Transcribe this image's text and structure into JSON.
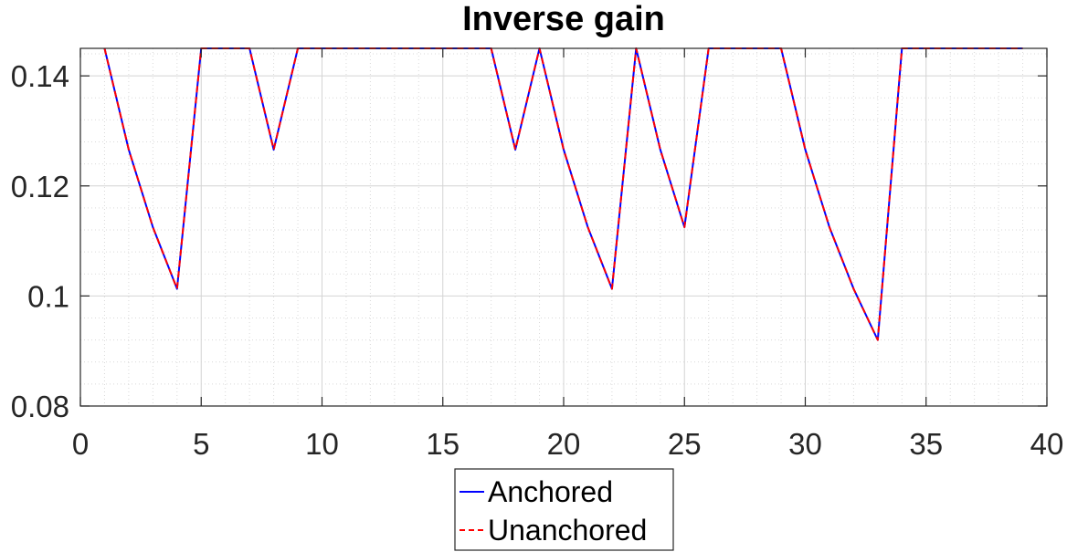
{
  "chart_data": {
    "type": "line",
    "title": "Inverse gain",
    "xlabel": "",
    "ylabel": "",
    "xlim": [
      0,
      40
    ],
    "ylim": [
      0.08,
      0.145
    ],
    "xticks": [
      0,
      5,
      10,
      15,
      20,
      25,
      30,
      35,
      40
    ],
    "yticks": [
      0.08,
      0.1,
      0.12,
      0.14
    ],
    "xtick_labels": [
      "0",
      "5",
      "10",
      "15",
      "20",
      "25",
      "30",
      "35",
      "40"
    ],
    "ytick_labels": [
      "0.08",
      "0.1",
      "0.12",
      "0.14"
    ],
    "grid": true,
    "minor_grid": true,
    "legend_position": "bottom-center",
    "x": [
      1,
      2,
      3,
      4,
      5,
      6,
      7,
      8,
      9,
      10,
      11,
      12,
      13,
      14,
      15,
      16,
      17,
      18,
      19,
      20,
      21,
      22,
      23,
      24,
      25,
      26,
      27,
      28,
      29,
      30,
      31,
      32,
      33,
      34,
      35,
      36,
      37,
      38,
      39
    ],
    "series": [
      {
        "name": "Anchored",
        "color": "#0000ff",
        "style": "solid",
        "values": [
          0.145,
          0.1266,
          0.1125,
          0.1013,
          0.145,
          0.145,
          0.145,
          0.1266,
          0.145,
          0.145,
          0.145,
          0.145,
          0.145,
          0.145,
          0.145,
          0.145,
          0.145,
          0.1266,
          0.145,
          0.1266,
          0.1125,
          0.1013,
          0.145,
          0.1266,
          0.1125,
          0.145,
          0.145,
          0.145,
          0.145,
          0.1266,
          0.1125,
          0.1013,
          0.092,
          0.145,
          0.145,
          0.145,
          0.145,
          0.145,
          0.145
        ]
      },
      {
        "name": "Unanchored",
        "color": "#ff0000",
        "style": "dashed",
        "values": [
          0.145,
          0.1266,
          0.1125,
          0.1013,
          0.145,
          0.145,
          0.145,
          0.1266,
          0.145,
          0.145,
          0.145,
          0.145,
          0.145,
          0.145,
          0.145,
          0.145,
          0.145,
          0.1266,
          0.145,
          0.1266,
          0.1125,
          0.1013,
          0.145,
          0.1266,
          0.1125,
          0.145,
          0.145,
          0.145,
          0.145,
          0.1266,
          0.1125,
          0.1013,
          0.092,
          0.145,
          0.145,
          0.145,
          0.145,
          0.145,
          0.145
        ]
      }
    ]
  }
}
